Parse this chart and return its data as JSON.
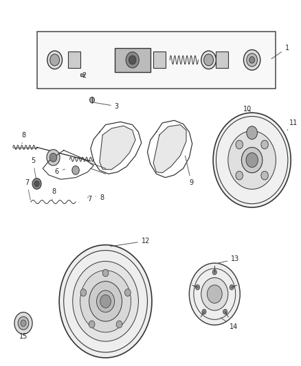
{
  "background_color": "#ffffff",
  "line_color": "#333333",
  "label_color": "#222222",
  "fig_width": 4.38,
  "fig_height": 5.33,
  "dpi": 100
}
